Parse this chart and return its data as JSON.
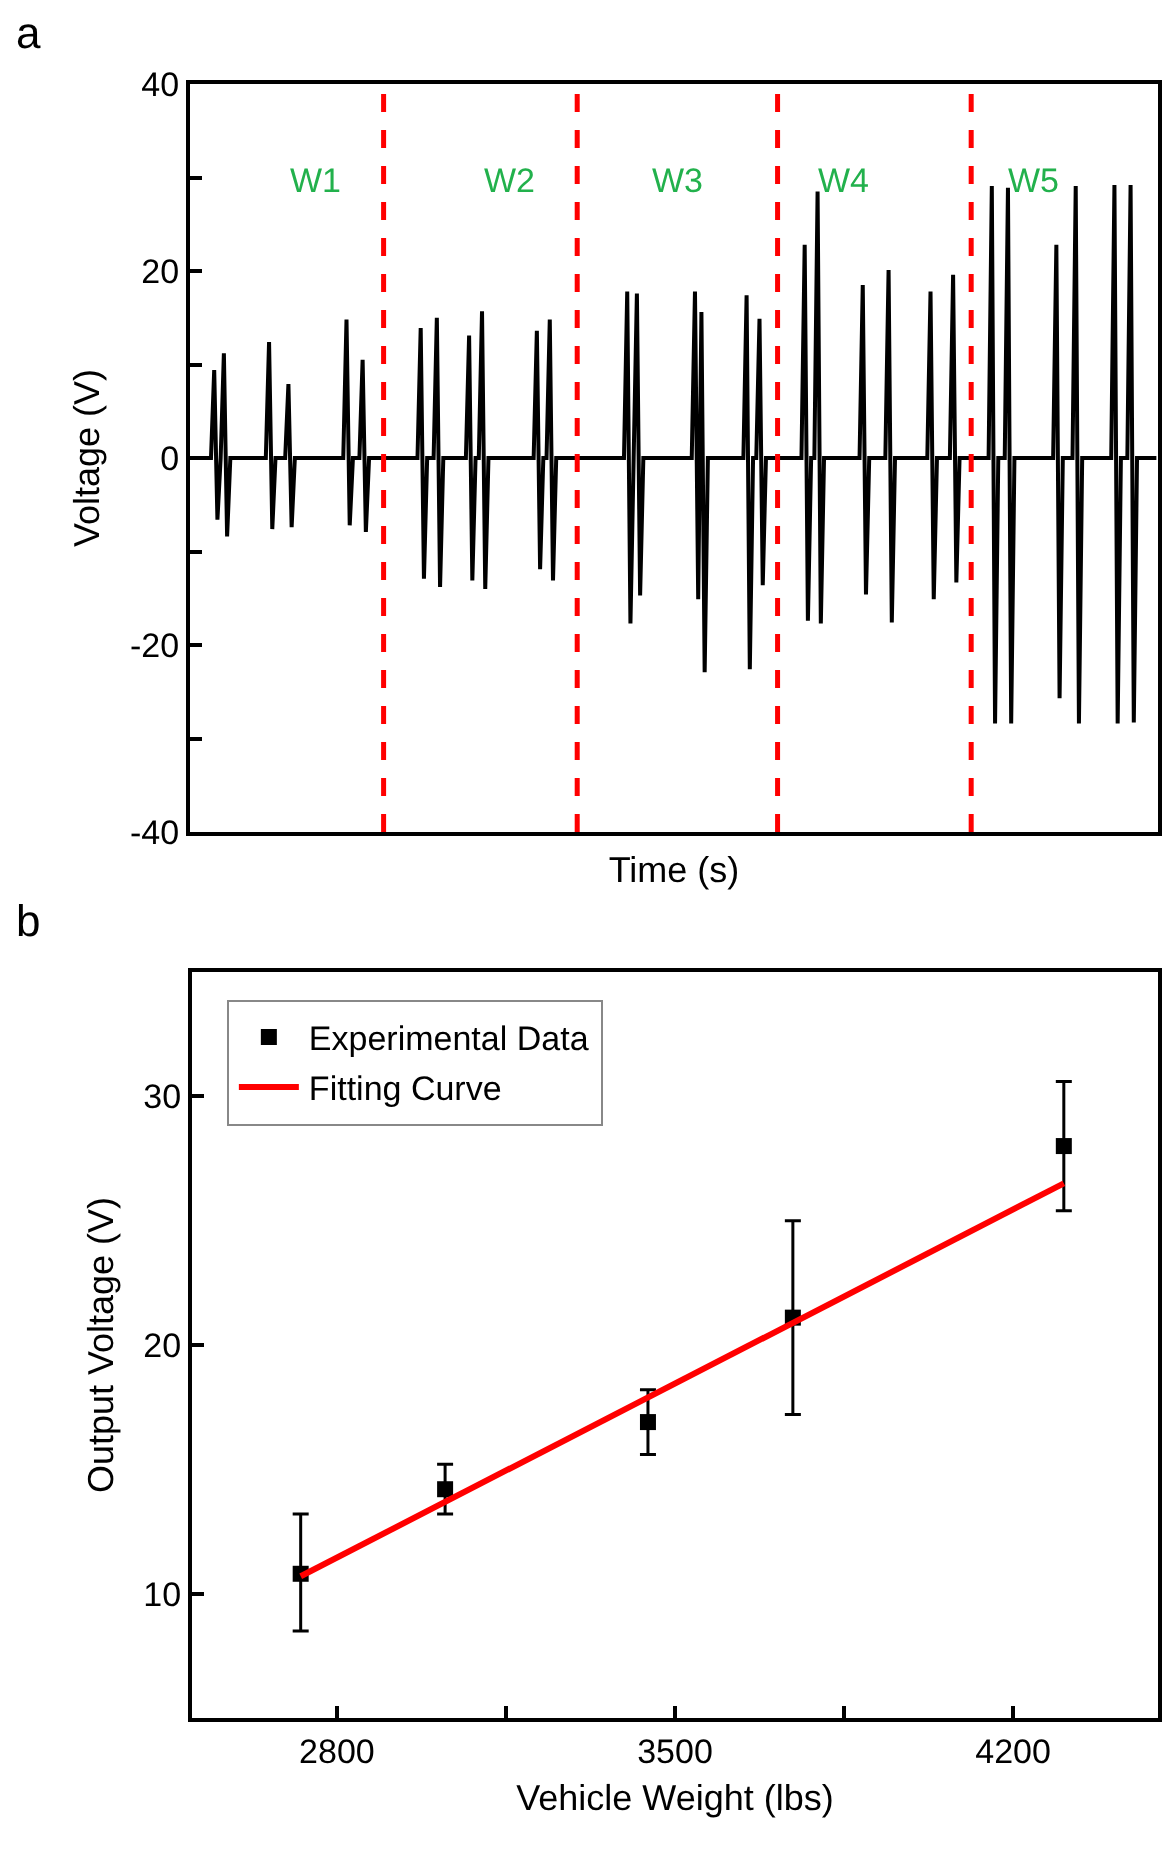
{
  "chart_data": [
    {
      "type": "line",
      "xlabel": "Time (s)",
      "ylabel": "Voltage (V)",
      "annotations": [
        "a",
        "W1",
        "W2",
        "W3",
        "W4",
        "W5"
      ],
      "categories": [
        null,
        null,
        null,
        null,
        null,
        null,
        null,
        null,
        null,
        null,
        null,
        null,
        null,
        null,
        null,
        null,
        null,
        null,
        null,
        null,
        null,
        null,
        null,
        null,
        null,
        null,
        null,
        null,
        null,
        null,
        null,
        null,
        null,
        null,
        null,
        null,
        null,
        null,
        null,
        null,
        null,
        null,
        null,
        null,
        null,
        null,
        null,
        null,
        null,
        null,
        null,
        null,
        null,
        null,
        null,
        null,
        null,
        null,
        null,
        null,
        null,
        null,
        null,
        null,
        null,
        null,
        null,
        null,
        null,
        null,
        null,
        null,
        null,
        null,
        null,
        null,
        null,
        null,
        null,
        null,
        null,
        null,
        null,
        null,
        null,
        null,
        null,
        null,
        null,
        null,
        null,
        null,
        null,
        null,
        null,
        null,
        null,
        null,
        null,
        null,
        null,
        null,
        null,
        null,
        null,
        null,
        null,
        null,
        null,
        null,
        null,
        null,
        null,
        null,
        null,
        null,
        null,
        null,
        null,
        null,
        null,
        null,
        null,
        null,
        null,
        null,
        null,
        null,
        null,
        null,
        null,
        null,
        null,
        null,
        null,
        null,
        null,
        null,
        null,
        null,
        null,
        null,
        null,
        null,
        null,
        null,
        null,
        null,
        null,
        null,
        null,
        null,
        null,
        null,
        null,
        null,
        null,
        null,
        null,
        null,
        null,
        null,
        null,
        null,
        null,
        null,
        null,
        null,
        null,
        null,
        null,
        null,
        null,
        null,
        null,
        null,
        null,
        null,
        null,
        null,
        null,
        null,
        null,
        null,
        null,
        null,
        null,
        null,
        null,
        null,
        null,
        null,
        null,
        null,
        null,
        null,
        null,
        null,
        null,
        null,
        null,
        null,
        null,
        null,
        null,
        null,
        null,
        null,
        null,
        null,
        null,
        null,
        null,
        null,
        null,
        null,
        null,
        null,
        null,
        null,
        null,
        null,
        null,
        null,
        null,
        null,
        null,
        null,
        null,
        null,
        null,
        null,
        null,
        null,
        null,
        null,
        null,
        null,
        null,
        null,
        null,
        null,
        null,
        null,
        null,
        null,
        null,
        null,
        null,
        null,
        null,
        null,
        null,
        null,
        null,
        null,
        null,
        null,
        null,
        null,
        null,
        null,
        null,
        null,
        null,
        null,
        null,
        null,
        null,
        null,
        null,
        null,
        null,
        null,
        null,
        null,
        null,
        null,
        null,
        null,
        null,
        null,
        null,
        null,
        null,
        null,
        null,
        null,
        null,
        null,
        null,
        null,
        null,
        null,
        null,
        null,
        null,
        null,
        null,
        null
      ],
      "series": [
        {
          "color": "#000000",
          "values": [
            0,
            0,
            0,
            0,
            0,
            0,
            0,
            9.4,
            -6.6,
            0,
            11.2,
            -8.4,
            0,
            0,
            0,
            0,
            0,
            0,
            0,
            0,
            0,
            0,
            0,
            0,
            12.4,
            -7.6,
            0,
            0,
            0,
            0,
            7.9,
            -7.4,
            0,
            0,
            0,
            0,
            0,
            0,
            0,
            0,
            0,
            0,
            0,
            0,
            0,
            0,
            0,
            0,
            14.8,
            -7.2,
            0,
            0,
            0,
            10.5,
            -7.9,
            0,
            0,
            0,
            0,
            0,
            0,
            0,
            0,
            0,
            0,
            0,
            0,
            0,
            0,
            0,
            0,
            13.9,
            -12.9,
            0,
            0,
            0,
            15.0,
            -13.8,
            0,
            0,
            0,
            0,
            0,
            0,
            0,
            0,
            13.1,
            -13.1,
            0,
            0,
            15.7,
            -14.0,
            0,
            0,
            0,
            0,
            0,
            0,
            0,
            0,
            0,
            0,
            0,
            0,
            0,
            0,
            0,
            13.6,
            -11.9,
            0,
            0,
            14.8,
            -13.1,
            0,
            0,
            0,
            0,
            0,
            0,
            0,
            0,
            0,
            0,
            0,
            0,
            0,
            0,
            0,
            0,
            0,
            0,
            0,
            0,
            0,
            0,
            17.8,
            -17.7,
            0,
            17.6,
            -14.7,
            0,
            0,
            0,
            0,
            0,
            0,
            0,
            0,
            0,
            0,
            0,
            0,
            0,
            0,
            0,
            0,
            17.8,
            -15.1,
            15.6,
            -22.9,
            0,
            0,
            0,
            0,
            0,
            0,
            0,
            0,
            0,
            0,
            0,
            0,
            17.4,
            -22.6,
            0,
            0,
            14.9,
            -13.6,
            0,
            0,
            0,
            0,
            0,
            0,
            0,
            0,
            0,
            0,
            0,
            0,
            22.8,
            -17.4,
            0,
            0,
            28.5,
            -17.7,
            0,
            0,
            0,
            0,
            0,
            0,
            0,
            0,
            0,
            0,
            0,
            0,
            18.5,
            -14.6,
            0,
            0,
            0,
            0,
            0,
            0,
            20.1,
            -17.6,
            0,
            0,
            0,
            0,
            0,
            0,
            0,
            0,
            0,
            0,
            0,
            17.8,
            -15.1,
            0,
            0,
            0,
            0,
            0,
            19.6,
            -13.3,
            0,
            0,
            0,
            0,
            0,
            0,
            0,
            0,
            0,
            0,
            29.1,
            -28.4,
            0,
            0,
            0,
            28.9,
            -28.4,
            0,
            0,
            0,
            0,
            0,
            0,
            0,
            0,
            0,
            0,
            0,
            0,
            0,
            22.8,
            -25.7,
            0,
            0,
            0,
            0,
            29.1,
            -28.4,
            0,
            0,
            0,
            0,
            0,
            0,
            0,
            0,
            0,
            0,
            29.2,
            -28.4,
            0,
            0,
            0,
            29.2,
            -28.3,
            0,
            0,
            0,
            0,
            0,
            0,
            0
          ]
        }
      ],
      "ylim": [
        -40,
        40
      ],
      "yticks": [
        -40,
        {
          "value": -30,
          "label": null
        },
        -20,
        {
          "value": -10,
          "label": null
        },
        0,
        {
          "value": 10,
          "label": null
        },
        20,
        {
          "value": 30,
          "label": null
        },
        40
      ],
      "tick_labels": "y",
      "marker": "none",
      "line_style": "solid"
    },
    {
      "type": "scatter",
      "xlabel": "Vehicle Weight (lbs)",
      "ylabel": "Output Voltage (V)",
      "annotations": [
        "b"
      ],
      "series": [
        {
          "name": "Experimental Data",
          "type": "scatter",
          "color": "#000000",
          "marker": "square",
          "x": [
            2725,
            3024,
            3444,
            3744,
            4305
          ],
          "values": [
            10.8,
            14.2,
            16.9,
            21.1,
            28.0
          ],
          "errors": [
            [
              8.5,
              13.2
            ],
            [
              13.2,
              15.2
            ],
            [
              15.6,
              18.2
            ],
            [
              17.2,
              25.0
            ],
            [
              25.4,
              30.6
            ]
          ]
        },
        {
          "name": "Fitting Curve",
          "type": "line",
          "color": "#ff0000",
          "marker": "none",
          "line_style": "solid",
          "x": [
            2725,
            4305
          ],
          "values": [
            10.7,
            26.5
          ]
        }
      ],
      "xlim": [
        2500,
        4500
      ],
      "xticks": [
        2800,
        {
          "value": 3150,
          "label": null
        },
        3500,
        {
          "value": 3850,
          "label": null
        },
        4200
      ],
      "ylim": [
        5,
        35
      ],
      "yticks": [
        10,
        20,
        30
      ],
      "legend": "top left"
    }
  ]
}
